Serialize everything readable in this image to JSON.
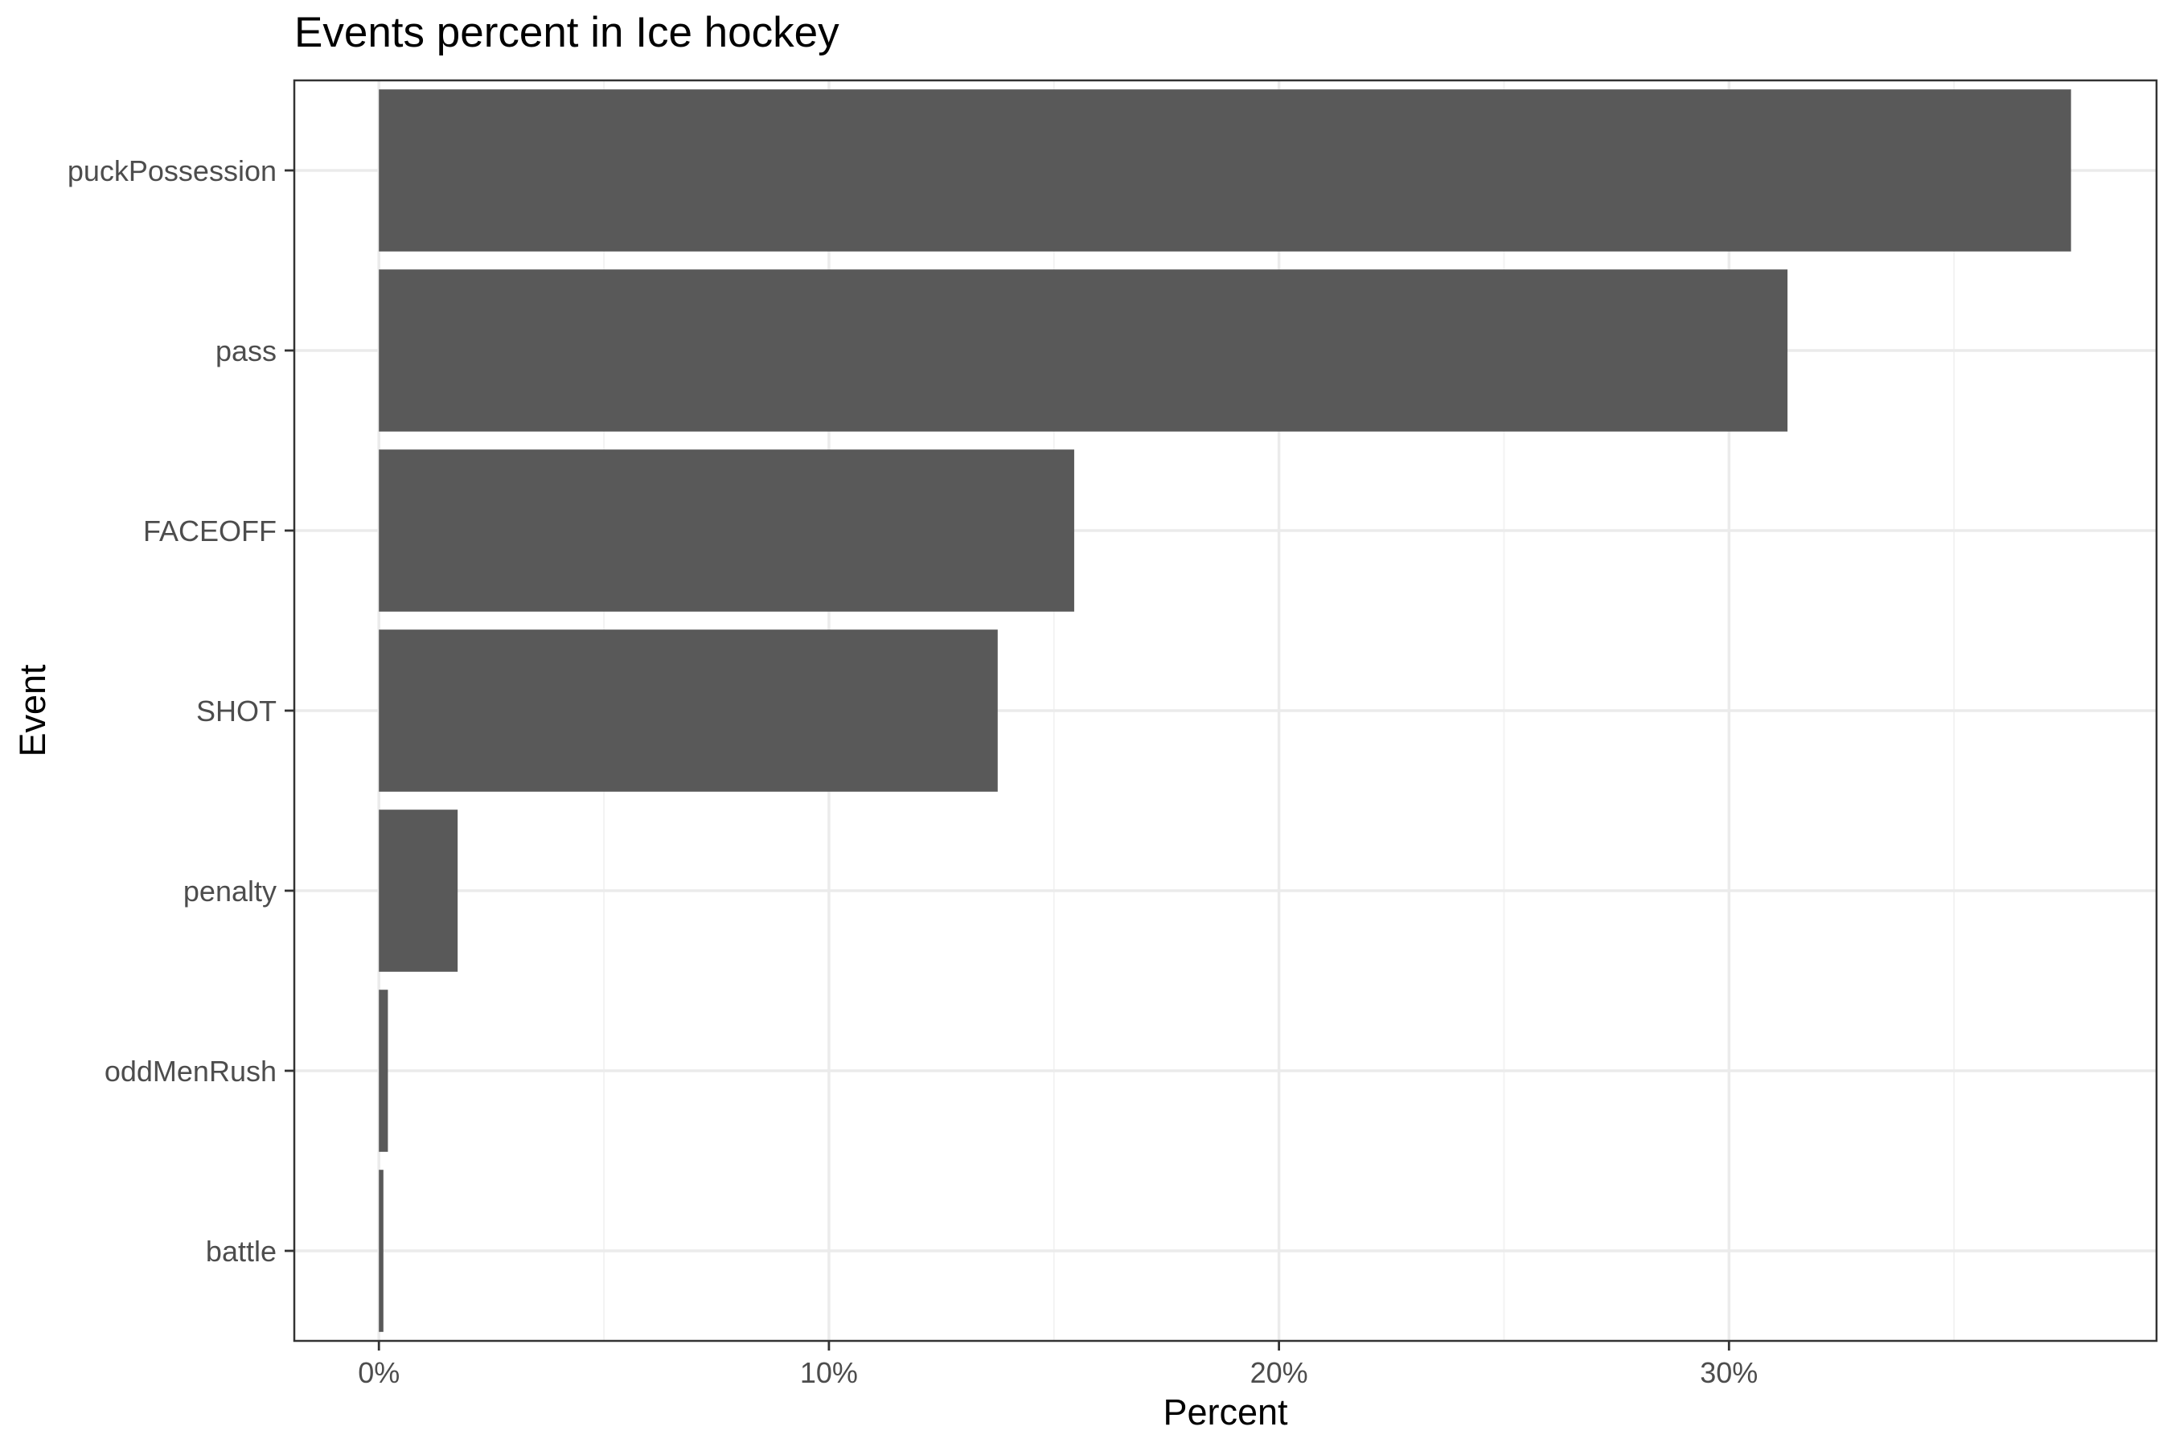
{
  "chart_data": {
    "type": "bar",
    "orientation": "horizontal",
    "title": "Events percent in Ice hockey",
    "xlabel": "Percent",
    "ylabel": "Event",
    "categories": [
      "puckPossession",
      "pass",
      "FACEOFF",
      "SHOT",
      "penalty",
      "oddMenRush",
      "battle"
    ],
    "values": [
      37.6,
      31.3,
      15.45,
      13.75,
      1.75,
      0.2,
      0.1
    ],
    "value_unit": "%",
    "xlim": [
      -1.88,
      39.5
    ],
    "xticks": [
      0,
      10,
      20,
      30
    ],
    "xtick_labels": [
      "0%",
      "10%",
      "20%",
      "30%"
    ],
    "grid": true,
    "legend": "none",
    "bar_color": "#595959"
  }
}
